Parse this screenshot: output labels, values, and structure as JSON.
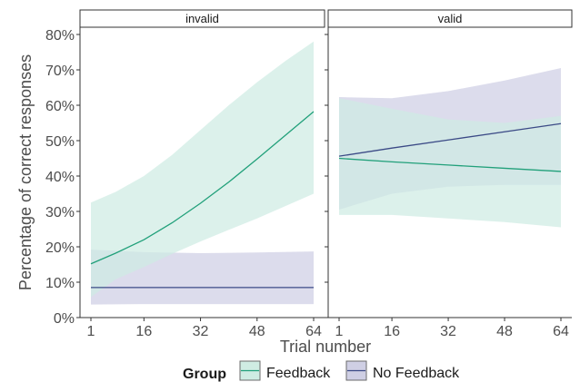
{
  "chart_data": {
    "type": "line",
    "ylabel": "Percentage of correct responses",
    "xlabel": "Trial number",
    "x_ticks": [
      1,
      16,
      32,
      48,
      64
    ],
    "y_ticks": [
      "0%",
      "10%",
      "20%",
      "30%",
      "40%",
      "50%",
      "60%",
      "70%",
      "80%"
    ],
    "xlim": [
      1,
      64
    ],
    "ylim": [
      0,
      80
    ],
    "grid": false,
    "legend": {
      "title": "Group",
      "position": "bottom",
      "entries": [
        "Feedback",
        "No Feedback"
      ]
    },
    "colors": {
      "Feedback_line": "#21a07a",
      "Feedback_band": "#cfece3",
      "No Feedback_line": "#3b4a86",
      "No Feedback_band": "#cfcfe4"
    },
    "panels": [
      {
        "strip": "invalid",
        "series": [
          {
            "name": "Feedback",
            "x": [
              1,
              8,
              16,
              24,
              32,
              40,
              48,
              56,
              64
            ],
            "y": [
              15.2,
              18.2,
              22.0,
              26.8,
              32.3,
              38.3,
              44.8,
              51.5,
              58.2
            ],
            "lower": [
              5.8,
              10.8,
              14.3,
              18.0,
              21.5,
              24.8,
              28.0,
              31.5,
              35.0
            ],
            "upper": [
              32.5,
              35.5,
              40.0,
              46.0,
              53.0,
              60.0,
              66.5,
              72.5,
              78.0
            ]
          },
          {
            "name": "No Feedback",
            "x": [
              1,
              16,
              32,
              48,
              64
            ],
            "y": [
              8.5,
              8.5,
              8.5,
              8.5,
              8.5
            ],
            "lower": [
              3.7,
              3.8,
              3.8,
              3.8,
              3.8
            ],
            "upper": [
              19.2,
              18.5,
              18.2,
              18.4,
              18.7
            ]
          }
        ]
      },
      {
        "strip": "valid",
        "series": [
          {
            "name": "Feedback",
            "x": [
              1,
              16,
              32,
              48,
              64
            ],
            "y": [
              45.0,
              44.0,
              43.1,
              42.2,
              41.3
            ],
            "lower": [
              29.0,
              29.0,
              28.0,
              27.0,
              25.5
            ],
            "upper": [
              62.0,
              59.0,
              56.0,
              55.0,
              57.0
            ]
          },
          {
            "name": "No Feedback",
            "x": [
              1,
              16,
              32,
              48,
              64
            ],
            "y": [
              45.6,
              47.9,
              50.2,
              52.5,
              54.8
            ],
            "lower": [
              30.5,
              35.0,
              37.0,
              37.5,
              37.5
            ],
            "upper": [
              62.3,
              62.0,
              64.0,
              67.0,
              70.5
            ]
          }
        ]
      }
    ]
  }
}
